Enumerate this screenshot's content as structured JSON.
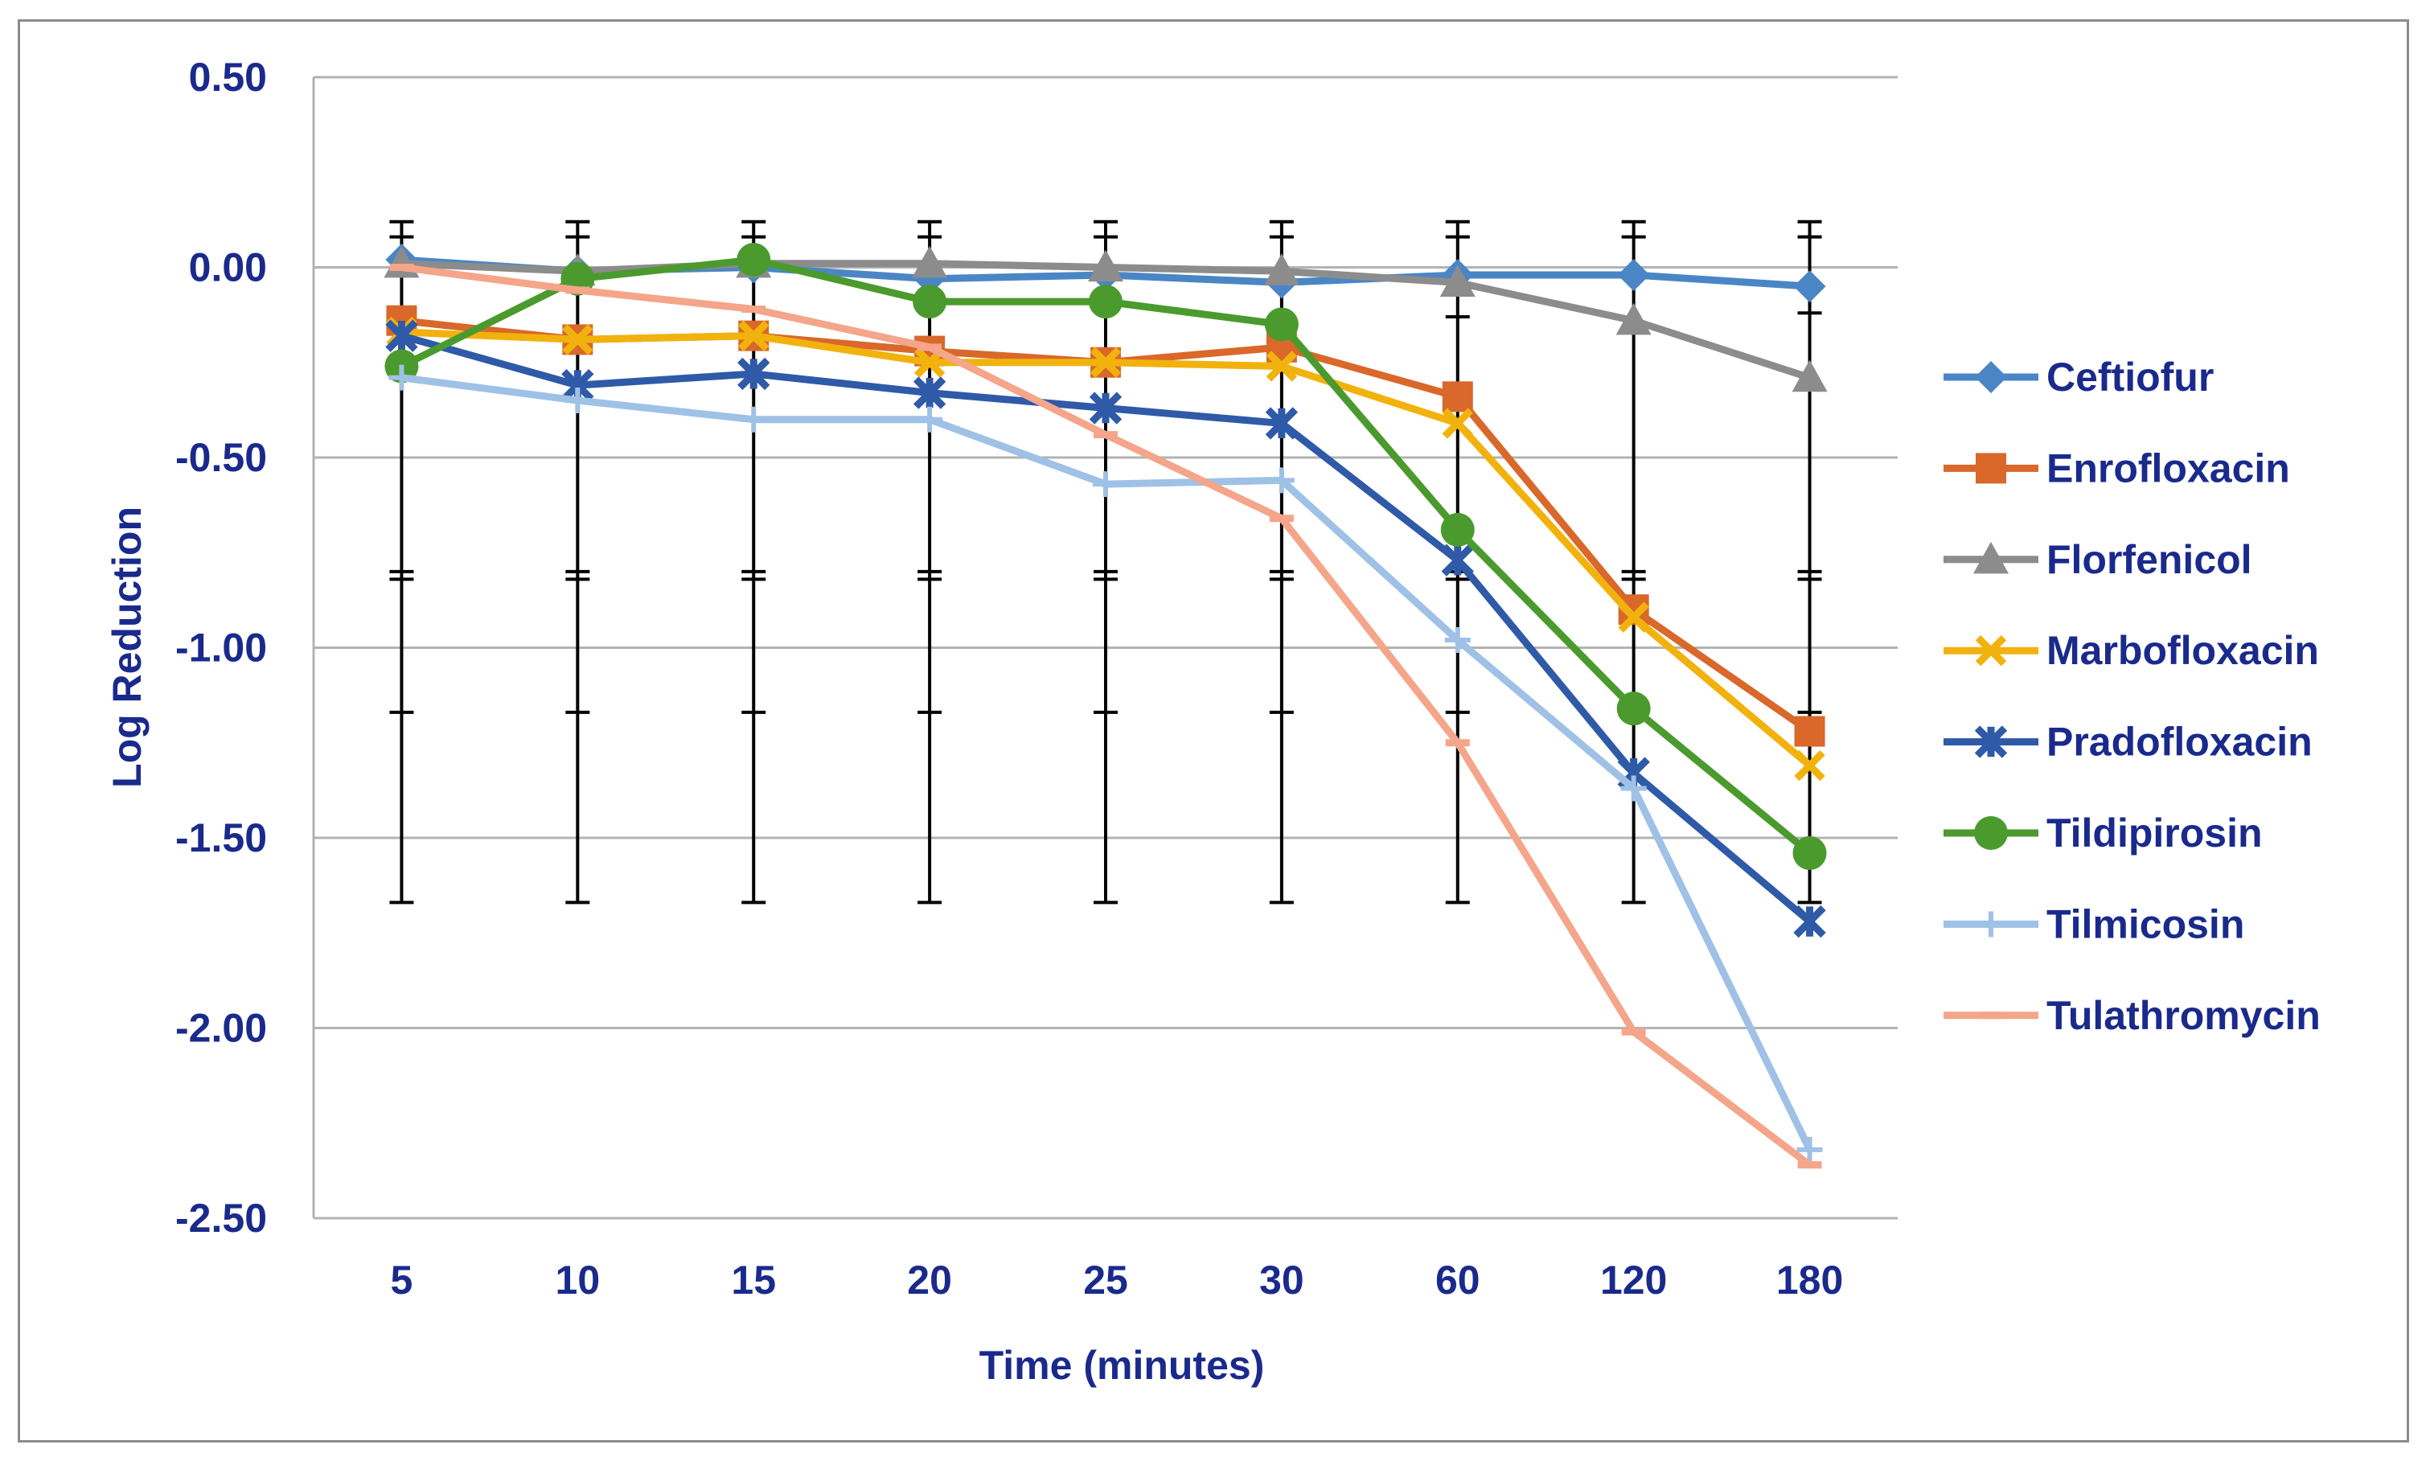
{
  "chart_data": {
    "type": "line",
    "title": "",
    "xlabel": "Time (minutes)",
    "ylabel": "Log Reduction",
    "categories": [
      "5",
      "10",
      "15",
      "20",
      "25",
      "30",
      "60",
      "120",
      "180"
    ],
    "ylim": [
      -2.5,
      0.5
    ],
    "yticks": [
      "0.50",
      "0.00",
      "-0.50",
      "-1.00",
      "-1.50",
      "-2.00",
      "-2.50"
    ],
    "ytick_values": [
      0.5,
      0.0,
      -0.5,
      -1.0,
      -1.5,
      -2.0,
      -2.5
    ],
    "grid": true,
    "legend_position": "right",
    "error_bars": {
      "color": "#000000",
      "bars": [
        {
          "value": 0.0,
          "upper": 0.12,
          "lower": -1.67,
          "inner": [
            0.08,
            -0.8,
            -0.82,
            -1.17
          ]
        },
        {
          "value": 0.0,
          "upper": 0.12,
          "lower": -1.67,
          "inner": [
            0.08,
            -0.8,
            -0.82,
            -1.17
          ]
        },
        {
          "value": 0.0,
          "upper": 0.12,
          "lower": -1.67,
          "inner": [
            0.08,
            -0.8,
            -0.82,
            -1.17
          ]
        },
        {
          "value": 0.0,
          "upper": 0.12,
          "lower": -1.67,
          "inner": [
            0.08,
            -0.8,
            -0.82,
            -1.17
          ]
        },
        {
          "value": 0.0,
          "upper": 0.12,
          "lower": -1.67,
          "inner": [
            0.08,
            -0.8,
            -0.82,
            -1.17
          ]
        },
        {
          "value": 0.0,
          "upper": 0.12,
          "lower": -1.67,
          "inner": [
            0.08,
            -0.8,
            -0.82,
            -1.17
          ]
        },
        {
          "value": 0.0,
          "upper": 0.12,
          "lower": -1.67,
          "inner": [
            0.08,
            -0.13,
            -0.8,
            -0.82,
            -1.17
          ]
        },
        {
          "value": 0.0,
          "upper": 0.12,
          "lower": -1.67,
          "inner": [
            0.08,
            -0.8,
            -0.82,
            -1.17
          ]
        },
        {
          "value": 0.0,
          "upper": 0.12,
          "lower": -1.67,
          "inner": [
            0.08,
            -0.12,
            -0.8,
            -0.82,
            -1.17
          ]
        }
      ]
    },
    "series": [
      {
        "name": "Ceftiofur",
        "color": "#4a86c5",
        "marker": "diamond",
        "values": [
          0.02,
          -0.01,
          0.0,
          -0.03,
          -0.02,
          -0.04,
          -0.02,
          -0.02,
          -0.05
        ]
      },
      {
        "name": "Enrofloxacin",
        "color": "#d9682a",
        "marker": "square",
        "values": [
          -0.14,
          -0.19,
          -0.18,
          -0.22,
          -0.25,
          -0.21,
          -0.34,
          -0.9,
          -1.22
        ]
      },
      {
        "name": "Florfenicol",
        "color": "#8c8c8c",
        "marker": "triangle",
        "values": [
          0.01,
          -0.01,
          0.01,
          0.01,
          0.0,
          -0.01,
          -0.04,
          -0.14,
          -0.29
        ]
      },
      {
        "name": "Marbofloxacin",
        "color": "#f2b20d",
        "marker": "x",
        "values": [
          -0.17,
          -0.19,
          -0.18,
          -0.25,
          -0.25,
          -0.26,
          -0.41,
          -0.92,
          -1.31
        ]
      },
      {
        "name": "Pradofloxacin",
        "color": "#2f5aa8",
        "marker": "star",
        "values": [
          -0.18,
          -0.31,
          -0.28,
          -0.33,
          -0.37,
          -0.41,
          -0.77,
          -1.33,
          -1.72
        ]
      },
      {
        "name": "Tildipirosin",
        "color": "#4b9a2e",
        "marker": "circle",
        "values": [
          -0.26,
          -0.03,
          0.02,
          -0.09,
          -0.09,
          -0.15,
          -0.69,
          -1.16,
          -1.54
        ]
      },
      {
        "name": "Tilmicosin",
        "color": "#9fc1e6",
        "marker": "plus",
        "values": [
          -0.29,
          -0.35,
          -0.4,
          -0.4,
          -0.57,
          -0.56,
          -0.98,
          -1.37,
          -2.32
        ]
      },
      {
        "name": "Tulathromycin",
        "color": "#f4a58a",
        "marker": "dash",
        "values": [
          0.0,
          -0.06,
          -0.11,
          -0.21,
          -0.44,
          -0.66,
          -1.25,
          -2.01,
          -2.36
        ]
      }
    ]
  }
}
